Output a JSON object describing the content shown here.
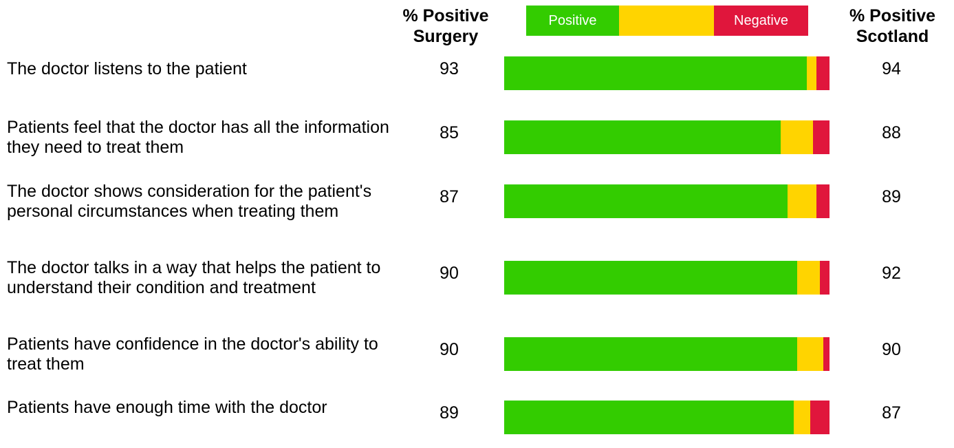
{
  "chart_data": {
    "type": "bar",
    "orientation": "horizontal",
    "stacked": true,
    "surgery_header": "% Positive Surgery",
    "scotland_header": "% Positive Scotland",
    "categories": [
      "The doctor listens to the patient",
      "Patients feel that the doctor has all the information they need to treat them",
      "The doctor shows consideration for the patient's personal circumstances when treating them",
      "The doctor talks in a way that helps the patient to understand their condition and treatment",
      "Patients have confidence in the doctor's ability to treat them",
      "Patients have enough time with the doctor"
    ],
    "series": [
      {
        "name": "Positive",
        "color": "#33cc00",
        "values": [
          93,
          85,
          87,
          90,
          90,
          89
        ]
      },
      {
        "color": "#ffd400",
        "values": [
          3,
          10,
          9,
          7,
          8,
          5
        ]
      },
      {
        "name": "Negative",
        "color": "#e0163c",
        "values": [
          4,
          5,
          4,
          3,
          2,
          6
        ]
      }
    ],
    "scotland_values": [
      94,
      88,
      89,
      92,
      90,
      87
    ],
    "xlim": [
      0,
      100
    ]
  }
}
